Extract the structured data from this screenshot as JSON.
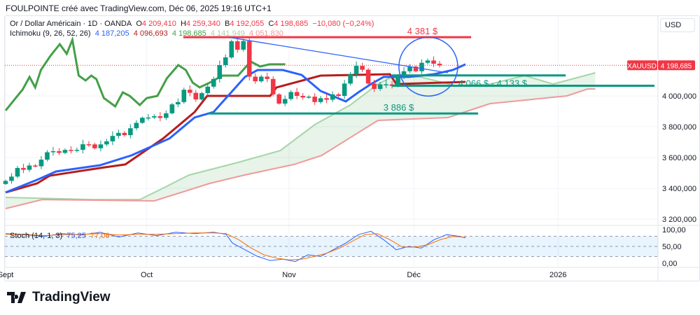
{
  "caption": "FOULPOINTE créé avec TradingView.com, Déc 06, 2025 19:16 UTC+1",
  "legend": {
    "symbol": "Or / Dollar Américain · 1D · OANDA",
    "open_label": "O",
    "open": "4 209,410",
    "high_label": "H",
    "high": "4 259,340",
    "low_label": "B",
    "low": "4 192,055",
    "close_label": "C",
    "close": "4 198,685",
    "change": "−10,080 (−0,24%)",
    "ichimoku_label": "Ichimoku (9, 26, 52, 26)",
    "ichimoku_values": [
      "4 187,205",
      "4 096,693",
      "4 198,685",
      "4 141,949",
      "4 051,830"
    ],
    "stoch_label": "Stoch (14, 1, 3)",
    "stoch_k": "75,25",
    "stoch_d": "77,06"
  },
  "currency": "USD",
  "price_tag": {
    "symbol": "XAUUSD",
    "value": "4 198,685"
  },
  "logo_text": "TradingView",
  "colors": {
    "up": "#089981",
    "down": "#f23645",
    "tenkan": "#2962ff",
    "kijun": "#b71c1c",
    "chikou": "#43a047",
    "spanA": "#a5d6a7",
    "spanB": "#ef9a9a",
    "level": "#089981",
    "resistance": "#f23645",
    "stochK": "#2962ff",
    "stochD": "#ff6d00"
  },
  "chart_data": {
    "type": "candlestick",
    "ylim": [
      3150,
      4460
    ],
    "y_ticks": [
      {
        "v": 3200,
        "label": "3 200,000"
      },
      {
        "v": 3400,
        "label": "3 400,000"
      },
      {
        "v": 3600,
        "label": "3 600,000"
      },
      {
        "v": 3800,
        "label": "3 800,000"
      },
      {
        "v": 4000,
        "label": "4 000,000"
      }
    ],
    "x_labels": [
      {
        "i": 0,
        "label": "Sept"
      },
      {
        "i": 22.4,
        "label": "Oct"
      },
      {
        "i": 45,
        "label": "Nov"
      },
      {
        "i": 64.8,
        "label": "Déc"
      },
      {
        "i": 87.7,
        "label": "2026"
      }
    ],
    "x_range": [
      -0.5,
      110
    ],
    "close": [
      3448,
      3476,
      3532,
      3520,
      3548,
      3543,
      3586,
      3634,
      3641,
      3630,
      3649,
      3644,
      3650,
      3686,
      3685,
      3660,
      3685,
      3705,
      3740,
      3760,
      3745,
      3790,
      3825,
      3858,
      3860,
      3868,
      3857,
      3887,
      3945,
      3960,
      4040,
      4020,
      3977,
      4018,
      4060,
      4110,
      4200,
      4250,
      4355,
      4300,
      4356,
      4125,
      4095,
      4125,
      4110,
      4010,
      3950,
      3980,
      4025,
      4000,
      3990,
      3995,
      3960,
      3985,
      3975,
      4010,
      4000,
      4080,
      4140,
      4195,
      4170,
      4080,
      4045,
      4075,
      4075,
      4065,
      4130,
      4160,
      4190,
      4160,
      4215,
      4230,
      4209,
      4198.685
    ],
    "ichimoku": {
      "tenkan": [
        [
          0,
          3373
        ],
        [
          5,
          3455
        ],
        [
          8,
          3509
        ],
        [
          15,
          3550
        ],
        [
          20,
          3614
        ],
        [
          26,
          3723
        ],
        [
          30,
          3860
        ],
        [
          33,
          3895
        ],
        [
          36,
          4032
        ],
        [
          38,
          4123
        ],
        [
          40,
          4168
        ],
        [
          44,
          4168
        ],
        [
          47,
          4136
        ],
        [
          50,
          4032
        ],
        [
          54,
          3964
        ],
        [
          56,
          4023
        ],
        [
          58,
          4077
        ],
        [
          60,
          4123
        ],
        [
          64,
          4123
        ],
        [
          68,
          4141
        ],
        [
          71,
          4168
        ],
        [
          73,
          4205
        ]
      ],
      "kijun": [
        [
          0,
          3373
        ],
        [
          5,
          3432
        ],
        [
          7,
          3482
        ],
        [
          15,
          3532
        ],
        [
          19,
          3555
        ],
        [
          25,
          3723
        ],
        [
          30,
          3895
        ],
        [
          32,
          4000
        ],
        [
          42,
          4000
        ],
        [
          43,
          4055
        ],
        [
          50,
          4132
        ],
        [
          61,
          4141
        ],
        [
          62,
          4077
        ],
        [
          73,
          4091
        ]
      ],
      "chikou": [
        [
          0,
          3905
        ],
        [
          1.6,
          3986
        ],
        [
          2.7,
          4041
        ],
        [
          3.8,
          4123
        ],
        [
          4.7,
          4055
        ],
        [
          5.6,
          4168
        ],
        [
          7.1,
          4259
        ],
        [
          8.6,
          4336
        ],
        [
          9.7,
          4273
        ],
        [
          10.6,
          4364
        ],
        [
          11.6,
          4132
        ],
        [
          12.7,
          4100
        ],
        [
          13.6,
          4132
        ],
        [
          14.4,
          4109
        ],
        [
          15.6,
          3986
        ],
        [
          17.4,
          3932
        ],
        [
          18.6,
          4023
        ],
        [
          19.7,
          4000
        ],
        [
          21.3,
          3941
        ],
        [
          22.4,
          3986
        ],
        [
          24.1,
          4000
        ],
        [
          25.6,
          4114
        ],
        [
          27.4,
          4200
        ],
        [
          28.6,
          4168
        ],
        [
          29.7,
          4086
        ],
        [
          30.8,
          4055
        ],
        [
          32.4,
          4086
        ],
        [
          34.4,
          4132
        ],
        [
          35.2,
          4132
        ],
        [
          36.9,
          4132
        ],
        [
          38.9,
          4223
        ],
        [
          40.4,
          4191
        ],
        [
          41.9,
          4205
        ],
        [
          44.4,
          4205
        ]
      ],
      "spanA": [
        [
          0,
          3341
        ],
        [
          13.6,
          3327
        ],
        [
          21.3,
          3327
        ],
        [
          24.7,
          3395
        ],
        [
          29.1,
          3486
        ],
        [
          36.9,
          3568
        ],
        [
          43.6,
          3645
        ],
        [
          49.1,
          3814
        ],
        [
          54.7,
          3941
        ],
        [
          59.1,
          4077
        ],
        [
          61.3,
          4123
        ],
        [
          65.8,
          4123
        ],
        [
          71.3,
          4068
        ],
        [
          76.9,
          4077
        ],
        [
          82.4,
          4132
        ],
        [
          86.9,
          4077
        ],
        [
          93.6,
          4150
        ]
      ],
      "spanB": [
        [
          0,
          3268
        ],
        [
          5.8,
          3327
        ],
        [
          23.6,
          3318
        ],
        [
          32.4,
          3432
        ],
        [
          37.9,
          3486
        ],
        [
          45.8,
          3555
        ],
        [
          50.2,
          3614
        ],
        [
          59.1,
          3841
        ],
        [
          70.2,
          3859
        ],
        [
          76.9,
          3950
        ],
        [
          89.1,
          4000
        ],
        [
          92.4,
          4045
        ],
        [
          93.6,
          4045
        ]
      ]
    },
    "levels": [
      {
        "label": "4 381 $",
        "value": 4381,
        "from": 28.2,
        "to": 73.9,
        "color": "resistance"
      },
      {
        "label": "4 066 $ - 4 133 $",
        "value": 4133,
        "from": 61.3,
        "to": 88.9,
        "color": "level"
      },
      {
        "value": 4066,
        "from": 61.3,
        "to": 103,
        "color": "level"
      },
      {
        "label": "3 886 $",
        "value": 3886,
        "from": 32.2,
        "to": 75,
        "color": "level"
      }
    ],
    "trendline": [
      [
        35.4,
        4381
      ],
      [
        70.2,
        4150
      ]
    ],
    "circle_center": [
      67.1,
      4190
    ],
    "stochastic": {
      "ylim": [
        0,
        100
      ],
      "ticks": [
        {
          "v": 100,
          "label": "100,00"
        },
        {
          "v": 50,
          "label": "50,00"
        },
        {
          "v": 0,
          "label": "0,00"
        }
      ],
      "bands": [
        20,
        80
      ],
      "k": [
        [
          0,
          88
        ],
        [
          3,
          85
        ],
        [
          6,
          80
        ],
        [
          9,
          88
        ],
        [
          12,
          84
        ],
        [
          15,
          92
        ],
        [
          18,
          78
        ],
        [
          21,
          90
        ],
        [
          24,
          82
        ],
        [
          27,
          92
        ],
        [
          30,
          88
        ],
        [
          33,
          92
        ],
        [
          35,
          86
        ],
        [
          36,
          60
        ],
        [
          38,
          40
        ],
        [
          40,
          20
        ],
        [
          42,
          8
        ],
        [
          44,
          12
        ],
        [
          46,
          5
        ],
        [
          48,
          25
        ],
        [
          50,
          20
        ],
        [
          52,
          40
        ],
        [
          54,
          60
        ],
        [
          56,
          85
        ],
        [
          58,
          95
        ],
        [
          60,
          70
        ],
        [
          62,
          40
        ],
        [
          64,
          50
        ],
        [
          66,
          45
        ],
        [
          68,
          70
        ],
        [
          70,
          85
        ],
        [
          72,
          80
        ],
        [
          73,
          75.25
        ]
      ],
      "d": [
        [
          0,
          86
        ],
        [
          3,
          86
        ],
        [
          6,
          82
        ],
        [
          9,
          85
        ],
        [
          12,
          86
        ],
        [
          15,
          88
        ],
        [
          18,
          84
        ],
        [
          21,
          86
        ],
        [
          24,
          86
        ],
        [
          27,
          88
        ],
        [
          30,
          90
        ],
        [
          33,
          90
        ],
        [
          35,
          88
        ],
        [
          37,
          70
        ],
        [
          39,
          45
        ],
        [
          41,
          25
        ],
        [
          43,
          15
        ],
        [
          45,
          10
        ],
        [
          47,
          12
        ],
        [
          49,
          20
        ],
        [
          51,
          30
        ],
        [
          53,
          45
        ],
        [
          55,
          65
        ],
        [
          57,
          85
        ],
        [
          59,
          88
        ],
        [
          61,
          70
        ],
        [
          63,
          48
        ],
        [
          65,
          48
        ],
        [
          67,
          55
        ],
        [
          69,
          70
        ],
        [
          71,
          80
        ],
        [
          73,
          77.06
        ]
      ]
    }
  }
}
